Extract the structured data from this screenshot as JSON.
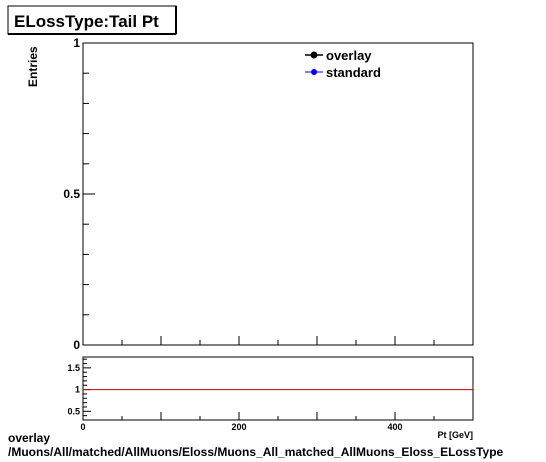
{
  "title": "ELossType:Tail Pt",
  "caption": {
    "line1": "overlay",
    "line2": "/Muons/All/matched/AllMuons/Eloss/Muons_All_matched_AllMuons_Eloss_ELossType"
  },
  "colors": {
    "overlay": "#000000",
    "standard": "#0000ff",
    "ratio_line": "#cc0000"
  },
  "chart_data": [
    {
      "type": "line",
      "title": "ELossType:Tail Pt",
      "xlabel": "",
      "ylabel": "Entries",
      "xlim": [
        0,
        500
      ],
      "ylim": [
        0,
        1
      ],
      "yticks": [
        {
          "value": 0,
          "label": "0"
        },
        {
          "value": 0.5,
          "label": "0.5"
        },
        {
          "value": 1,
          "label": "1"
        }
      ],
      "legend_placement": "top-right",
      "series": [
        {
          "name": "overlay",
          "values": []
        },
        {
          "name": "standard",
          "values": []
        }
      ]
    },
    {
      "type": "line",
      "title": "",
      "xlabel": "Pt [GeV]",
      "ylabel": "",
      "xlim": [
        0,
        500
      ],
      "ylim": [
        0.3,
        1.75
      ],
      "xticks": [
        {
          "value": 0,
          "label": "0"
        },
        {
          "value": 200,
          "label": "200"
        },
        {
          "value": 400,
          "label": "400"
        }
      ],
      "yticks": [
        {
          "value": 0.5,
          "label": "0.5"
        },
        {
          "value": 1,
          "label": "1"
        },
        {
          "value": 1.5,
          "label": "1.5"
        }
      ],
      "reference_line": 1
    }
  ]
}
